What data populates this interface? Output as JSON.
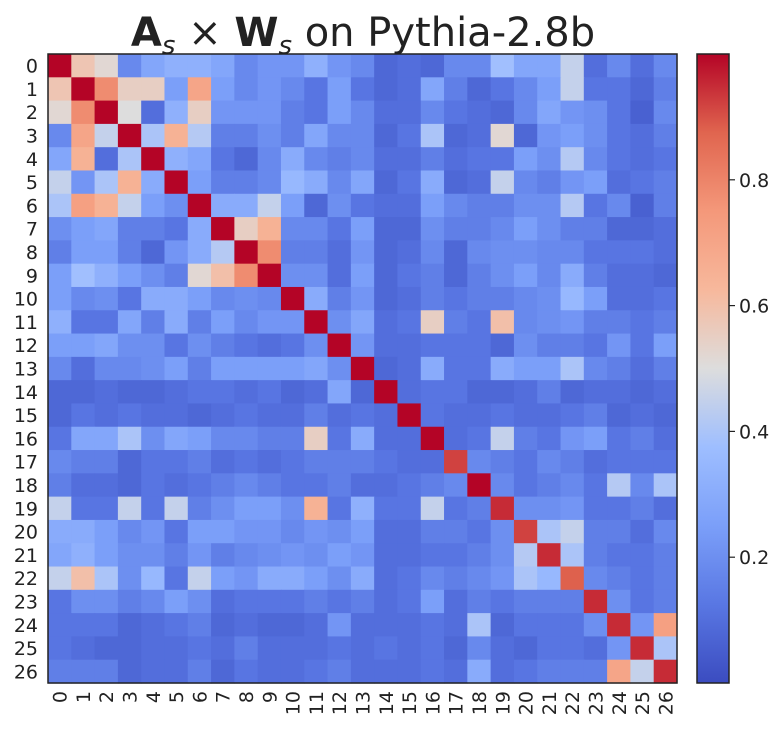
{
  "chart_data": {
    "type": "heatmap",
    "title": {
      "A": "A",
      "sub1": "s",
      "times": " × ",
      "W": "W",
      "sub2": "s",
      "rest": " on Pythia-2.8b"
    },
    "colormap": "coolwarm",
    "colors": {
      "low": "#3b4cc0",
      "mid": "#dddddd",
      "high": "#b40426",
      "frame": "#222222"
    },
    "vmin": 0.0,
    "vmax": 1.0,
    "colorbar_ticks": [
      "0.2",
      "0.4",
      "0.6",
      "0.8"
    ],
    "colorbar_tick_values": [
      0.2,
      0.4,
      0.6,
      0.8
    ],
    "row_labels": [
      "0",
      "1",
      "2",
      "3",
      "4",
      "5",
      "6",
      "7",
      "8",
      "9",
      "10",
      "11",
      "12",
      "13",
      "14",
      "15",
      "16",
      "17",
      "18",
      "19",
      "20",
      "21",
      "22",
      "23",
      "24",
      "25",
      "26"
    ],
    "col_labels": [
      "0",
      "1",
      "2",
      "3",
      "4",
      "5",
      "6",
      "7",
      "8",
      "9",
      "10",
      "11",
      "12",
      "13",
      "14",
      "15",
      "16",
      "17",
      "18",
      "19",
      "20",
      "21",
      "22",
      "23",
      "24",
      "25",
      "26"
    ],
    "values": [
      [
        1.0,
        0.58,
        0.52,
        0.18,
        0.28,
        0.32,
        0.32,
        0.28,
        0.18,
        0.22,
        0.22,
        0.32,
        0.22,
        0.18,
        0.08,
        0.1,
        0.08,
        0.18,
        0.18,
        0.38,
        0.28,
        0.28,
        0.45,
        0.1,
        0.18,
        0.1,
        0.18
      ],
      [
        0.58,
        1.0,
        0.78,
        0.55,
        0.55,
        0.25,
        0.7,
        0.25,
        0.18,
        0.22,
        0.18,
        0.12,
        0.25,
        0.12,
        0.08,
        0.1,
        0.28,
        0.15,
        0.08,
        0.12,
        0.18,
        0.25,
        0.45,
        0.12,
        0.12,
        0.08,
        0.15
      ],
      [
        0.52,
        0.78,
        1.0,
        0.5,
        0.1,
        0.32,
        0.55,
        0.22,
        0.22,
        0.22,
        0.15,
        0.12,
        0.25,
        0.18,
        0.1,
        0.1,
        0.18,
        0.12,
        0.1,
        0.08,
        0.18,
        0.28,
        0.22,
        0.2,
        0.12,
        0.06,
        0.18
      ],
      [
        0.18,
        0.7,
        0.45,
        1.0,
        0.4,
        0.65,
        0.42,
        0.15,
        0.15,
        0.2,
        0.15,
        0.28,
        0.18,
        0.18,
        0.08,
        0.12,
        0.4,
        0.08,
        0.1,
        0.52,
        0.08,
        0.22,
        0.25,
        0.2,
        0.12,
        0.1,
        0.15
      ],
      [
        0.28,
        0.65,
        0.1,
        0.4,
        1.0,
        0.32,
        0.28,
        0.12,
        0.08,
        0.18,
        0.3,
        0.18,
        0.15,
        0.18,
        0.1,
        0.1,
        0.15,
        0.1,
        0.12,
        0.12,
        0.25,
        0.2,
        0.42,
        0.18,
        0.12,
        0.1,
        0.12
      ],
      [
        0.45,
        0.22,
        0.4,
        0.65,
        0.3,
        1.0,
        0.25,
        0.15,
        0.15,
        0.18,
        0.35,
        0.3,
        0.18,
        0.28,
        0.08,
        0.12,
        0.3,
        0.08,
        0.1,
        0.45,
        0.18,
        0.15,
        0.22,
        0.25,
        0.1,
        0.12,
        0.15
      ],
      [
        0.4,
        0.72,
        0.65,
        0.45,
        0.25,
        0.2,
        1.0,
        0.3,
        0.3,
        0.45,
        0.25,
        0.08,
        0.2,
        0.12,
        0.1,
        0.1,
        0.25,
        0.18,
        0.15,
        0.15,
        0.2,
        0.2,
        0.42,
        0.12,
        0.18,
        0.06,
        0.15
      ],
      [
        0.2,
        0.25,
        0.28,
        0.15,
        0.15,
        0.12,
        0.3,
        1.0,
        0.55,
        0.65,
        0.18,
        0.18,
        0.12,
        0.25,
        0.08,
        0.08,
        0.2,
        0.15,
        0.15,
        0.18,
        0.25,
        0.2,
        0.15,
        0.15,
        0.08,
        0.08,
        0.1
      ],
      [
        0.15,
        0.25,
        0.25,
        0.15,
        0.08,
        0.22,
        0.3,
        0.42,
        1.0,
        0.78,
        0.15,
        0.15,
        0.1,
        0.22,
        0.08,
        0.1,
        0.18,
        0.08,
        0.18,
        0.2,
        0.2,
        0.18,
        0.18,
        0.12,
        0.12,
        0.12,
        0.1
      ],
      [
        0.25,
        0.38,
        0.32,
        0.25,
        0.2,
        0.15,
        0.52,
        0.6,
        0.78,
        1.0,
        0.2,
        0.2,
        0.1,
        0.25,
        0.08,
        0.12,
        0.15,
        0.08,
        0.15,
        0.2,
        0.25,
        0.18,
        0.3,
        0.15,
        0.1,
        0.1,
        0.08
      ],
      [
        0.25,
        0.18,
        0.2,
        0.12,
        0.3,
        0.3,
        0.25,
        0.18,
        0.2,
        0.18,
        1.0,
        0.3,
        0.15,
        0.22,
        0.08,
        0.1,
        0.15,
        0.12,
        0.15,
        0.15,
        0.18,
        0.2,
        0.35,
        0.25,
        0.1,
        0.1,
        0.12
      ],
      [
        0.32,
        0.12,
        0.12,
        0.28,
        0.15,
        0.3,
        0.15,
        0.25,
        0.18,
        0.22,
        0.22,
        1.0,
        0.2,
        0.28,
        0.1,
        0.12,
        0.55,
        0.15,
        0.12,
        0.6,
        0.18,
        0.2,
        0.22,
        0.15,
        0.15,
        0.12,
        0.15
      ],
      [
        0.25,
        0.25,
        0.28,
        0.2,
        0.2,
        0.12,
        0.2,
        0.15,
        0.12,
        0.1,
        0.12,
        0.2,
        1.0,
        0.22,
        0.1,
        0.1,
        0.12,
        0.12,
        0.12,
        0.08,
        0.2,
        0.15,
        0.15,
        0.12,
        0.22,
        0.12,
        0.25
      ],
      [
        0.18,
        0.1,
        0.18,
        0.18,
        0.2,
        0.25,
        0.15,
        0.25,
        0.25,
        0.25,
        0.25,
        0.28,
        0.2,
        1.0,
        0.08,
        0.1,
        0.3,
        0.12,
        0.12,
        0.3,
        0.25,
        0.25,
        0.4,
        0.18,
        0.15,
        0.1,
        0.15
      ],
      [
        0.08,
        0.08,
        0.1,
        0.08,
        0.08,
        0.1,
        0.12,
        0.12,
        0.1,
        0.12,
        0.08,
        0.1,
        0.28,
        0.08,
        1.0,
        0.1,
        0.12,
        0.12,
        0.08,
        0.08,
        0.1,
        0.15,
        0.08,
        0.1,
        0.1,
        0.08,
        0.1
      ],
      [
        0.08,
        0.12,
        0.1,
        0.12,
        0.1,
        0.1,
        0.08,
        0.1,
        0.12,
        0.1,
        0.1,
        0.15,
        0.1,
        0.12,
        0.1,
        1.0,
        0.12,
        0.1,
        0.1,
        0.12,
        0.1,
        0.1,
        0.12,
        0.15,
        0.08,
        0.1,
        0.08
      ],
      [
        0.12,
        0.28,
        0.28,
        0.4,
        0.2,
        0.28,
        0.25,
        0.18,
        0.18,
        0.15,
        0.15,
        0.55,
        0.12,
        0.3,
        0.1,
        0.1,
        1.0,
        0.1,
        0.12,
        0.45,
        0.15,
        0.12,
        0.22,
        0.25,
        0.12,
        0.15,
        0.1
      ],
      [
        0.18,
        0.15,
        0.15,
        0.08,
        0.12,
        0.12,
        0.15,
        0.1,
        0.12,
        0.1,
        0.12,
        0.15,
        0.15,
        0.15,
        0.12,
        0.1,
        0.1,
        0.92,
        0.18,
        0.15,
        0.12,
        0.18,
        0.15,
        0.1,
        0.12,
        0.12,
        0.12
      ],
      [
        0.15,
        0.1,
        0.1,
        0.08,
        0.12,
        0.1,
        0.12,
        0.15,
        0.18,
        0.15,
        0.12,
        0.12,
        0.15,
        0.1,
        0.1,
        0.12,
        0.15,
        0.18,
        1.0,
        0.18,
        0.12,
        0.15,
        0.18,
        0.12,
        0.42,
        0.18,
        0.4
      ],
      [
        0.45,
        0.12,
        0.12,
        0.45,
        0.12,
        0.45,
        0.15,
        0.2,
        0.25,
        0.25,
        0.2,
        0.65,
        0.12,
        0.32,
        0.12,
        0.12,
        0.45,
        0.12,
        0.15,
        0.95,
        0.2,
        0.2,
        0.22,
        0.12,
        0.12,
        0.15,
        0.1
      ],
      [
        0.3,
        0.3,
        0.25,
        0.18,
        0.22,
        0.12,
        0.25,
        0.25,
        0.22,
        0.22,
        0.18,
        0.22,
        0.2,
        0.25,
        0.1,
        0.1,
        0.15,
        0.15,
        0.12,
        0.2,
        0.92,
        0.4,
        0.45,
        0.15,
        0.15,
        0.1,
        0.18
      ],
      [
        0.28,
        0.32,
        0.25,
        0.2,
        0.2,
        0.15,
        0.22,
        0.15,
        0.18,
        0.2,
        0.22,
        0.2,
        0.25,
        0.22,
        0.1,
        0.1,
        0.12,
        0.12,
        0.15,
        0.2,
        0.42,
        0.95,
        0.4,
        0.15,
        0.12,
        0.12,
        0.15
      ],
      [
        0.45,
        0.6,
        0.4,
        0.2,
        0.35,
        0.12,
        0.45,
        0.25,
        0.22,
        0.3,
        0.3,
        0.25,
        0.2,
        0.3,
        0.1,
        0.12,
        0.18,
        0.15,
        0.18,
        0.22,
        0.4,
        0.35,
        0.88,
        0.18,
        0.15,
        0.12,
        0.15
      ],
      [
        0.12,
        0.2,
        0.2,
        0.15,
        0.18,
        0.25,
        0.2,
        0.1,
        0.12,
        0.12,
        0.12,
        0.15,
        0.12,
        0.15,
        0.1,
        0.12,
        0.25,
        0.1,
        0.15,
        0.12,
        0.15,
        0.15,
        0.15,
        0.95,
        0.2,
        0.12,
        0.15
      ],
      [
        0.12,
        0.12,
        0.12,
        0.08,
        0.1,
        0.12,
        0.15,
        0.08,
        0.1,
        0.08,
        0.08,
        0.1,
        0.22,
        0.1,
        0.1,
        0.1,
        0.12,
        0.1,
        0.4,
        0.08,
        0.12,
        0.12,
        0.12,
        0.2,
        0.95,
        0.22,
        0.72
      ],
      [
        0.12,
        0.1,
        0.08,
        0.08,
        0.1,
        0.1,
        0.12,
        0.1,
        0.15,
        0.1,
        0.1,
        0.1,
        0.12,
        0.1,
        0.12,
        0.1,
        0.12,
        0.08,
        0.18,
        0.1,
        0.08,
        0.12,
        0.12,
        0.1,
        0.22,
        0.95,
        0.4
      ],
      [
        0.15,
        0.15,
        0.15,
        0.08,
        0.1,
        0.1,
        0.15,
        0.08,
        0.12,
        0.1,
        0.1,
        0.12,
        0.15,
        0.1,
        0.1,
        0.1,
        0.12,
        0.1,
        0.3,
        0.1,
        0.12,
        0.15,
        0.15,
        0.15,
        0.7,
        0.45,
        0.95
      ]
    ]
  }
}
